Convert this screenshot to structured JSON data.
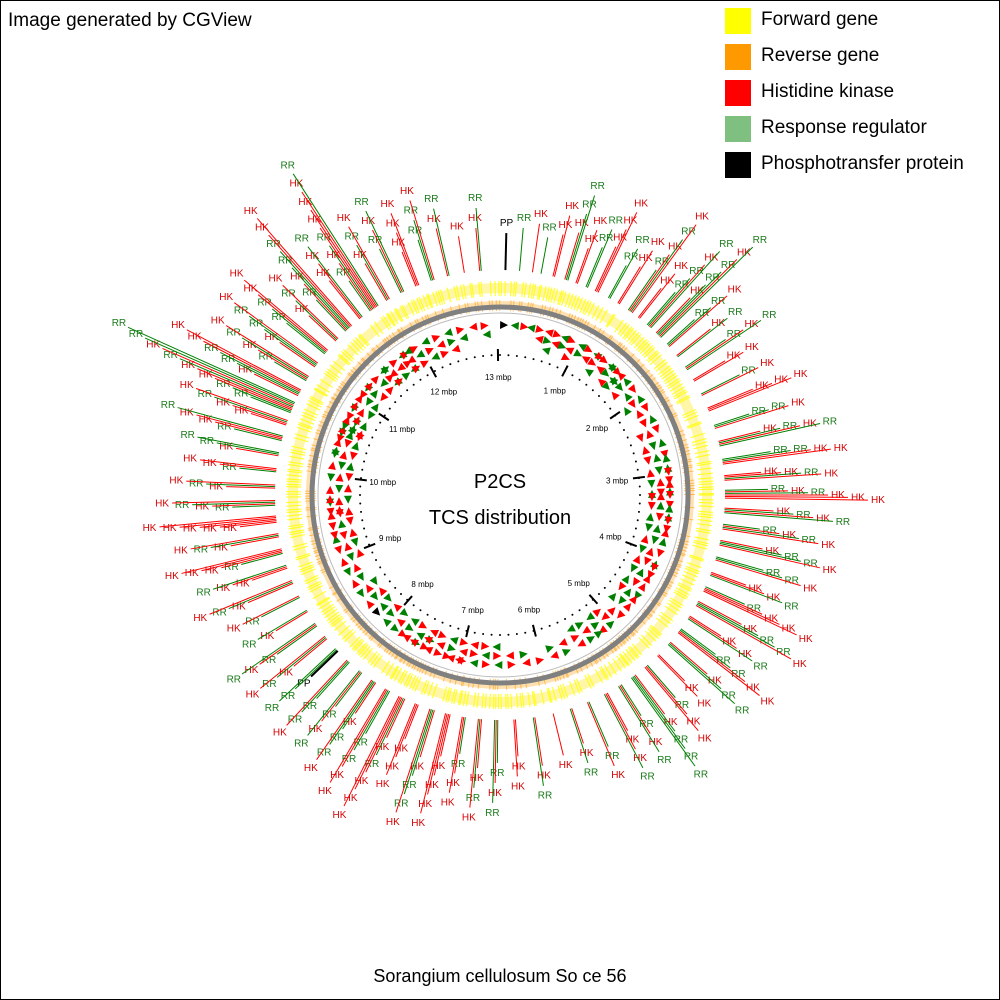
{
  "credit": "Image generated by CGView",
  "center": {
    "title": "P2CS",
    "subtitle": "TCS distribution"
  },
  "footer": "Sorangium cellulosum So ce 56",
  "legend": [
    {
      "label": "Forward gene",
      "color": "#ffff00"
    },
    {
      "label": "Reverse gene",
      "color": "#ff9900"
    },
    {
      "label": "Histidine kinase",
      "color": "#ff0000"
    },
    {
      "label": "Response regulator",
      "color": "#7fbf7f"
    },
    {
      "label": "Phosphotransfer protein",
      "color": "#000000"
    }
  ],
  "genome": {
    "length_mbp": 13.03,
    "ticks": [
      "1 mbp",
      "2 mbp",
      "3 mbp",
      "4 mbp",
      "5 mbp",
      "6 mbp",
      "7 mbp",
      "8 mbp",
      "9 mbp",
      "10 mbp",
      "11 mbp",
      "12 mbp",
      "13 mbp"
    ]
  },
  "feature_labels": {
    "HK": "HK",
    "RR": "RR",
    "PP": "PP"
  },
  "colors": {
    "hk": "#ff0000",
    "rr": "#008000",
    "pp": "#000000",
    "forward": "#ffff00",
    "reverse": "#ff9900",
    "backbone": "#808080",
    "hk_text": "#d40000",
    "rr_text": "#1a7a1a"
  },
  "features": [
    {
      "pos": 0.05,
      "labels": [
        "PP"
      ]
    },
    {
      "pos": 0.18,
      "labels": [
        "RR"
      ]
    },
    {
      "pos": 0.3,
      "labels": [
        "HK"
      ]
    },
    {
      "pos": 0.38,
      "labels": [
        "RR"
      ]
    },
    {
      "pos": 0.5,
      "labels": [
        "HK",
        "HK"
      ]
    },
    {
      "pos": 0.62,
      "labels": [
        "HK",
        "RR",
        "RR"
      ]
    },
    {
      "pos": 0.72,
      "labels": [
        "HK",
        "HK"
      ]
    },
    {
      "pos": 0.82,
      "labels": [
        "RR",
        "RR"
      ]
    },
    {
      "pos": 0.92,
      "labels": [
        "HK",
        "HK",
        "HK"
      ]
    },
    {
      "pos": 1.05,
      "labels": [
        "RR",
        "RR"
      ]
    },
    {
      "pos": 1.15,
      "labels": [
        "HK",
        "HK"
      ]
    },
    {
      "pos": 1.28,
      "labels": [
        "RR",
        "HK",
        "RR",
        "HK"
      ]
    },
    {
      "pos": 1.38,
      "labels": [
        "HK",
        "HK"
      ]
    },
    {
      "pos": 1.5,
      "labels": [
        "RR",
        "RR",
        "HK",
        "RR"
      ]
    },
    {
      "pos": 1.62,
      "labels": [
        "HK",
        "RR",
        "RR",
        "HK",
        "RR"
      ]
    },
    {
      "pos": 1.75,
      "labels": [
        "RR",
        "RR",
        "HK"
      ]
    },
    {
      "pos": 1.88,
      "labels": [
        "HK",
        "RR"
      ]
    },
    {
      "pos": 2.02,
      "labels": [
        "RR",
        "HK",
        "RR"
      ]
    },
    {
      "pos": 2.15,
      "labels": [
        "HK",
        "HK"
      ]
    },
    {
      "pos": 2.3,
      "labels": [
        "RR",
        "HK"
      ]
    },
    {
      "pos": 2.45,
      "labels": [
        "HK",
        "HK",
        "HK"
      ]
    },
    {
      "pos": 2.62,
      "labels": [
        "RR",
        "RR",
        "HK"
      ]
    },
    {
      "pos": 2.78,
      "labels": [
        "HK",
        "RR",
        "HK",
        "RR"
      ]
    },
    {
      "pos": 2.95,
      "labels": [
        "RR",
        "RR",
        "HK",
        "HK"
      ]
    },
    {
      "pos": 3.1,
      "labels": [
        "HK",
        "HK",
        "RR",
        "HK"
      ]
    },
    {
      "pos": 3.25,
      "labels": [
        "RR",
        "HK",
        "RR",
        "HK",
        "HK",
        "HK"
      ]
    },
    {
      "pos": 3.4,
      "labels": [
        "HK",
        "RR",
        "HK",
        "RR"
      ]
    },
    {
      "pos": 3.55,
      "labels": [
        "RR",
        "HK",
        "RR",
        "HK"
      ]
    },
    {
      "pos": 3.7,
      "labels": [
        "HK",
        "RR",
        "RR",
        "HK"
      ]
    },
    {
      "pos": 3.85,
      "labels": [
        "RR",
        "RR",
        "HK"
      ]
    },
    {
      "pos": 4.0,
      "labels": [
        "HK",
        "HK",
        "RR"
      ]
    },
    {
      "pos": 4.15,
      "labels": [
        "RR",
        "HK",
        "HK",
        "HK"
      ]
    },
    {
      "pos": 4.3,
      "labels": [
        "HK",
        "RR",
        "RR",
        "HK"
      ]
    },
    {
      "pos": 4.45,
      "labels": [
        "HK",
        "HK",
        "RR"
      ]
    },
    {
      "pos": 4.6,
      "labels": [
        "RR",
        "RR",
        "HK",
        "HK"
      ]
    },
    {
      "pos": 4.75,
      "labels": [
        "HK",
        "RR",
        "RR"
      ]
    },
    {
      "pos": 4.9,
      "labels": [
        "HK",
        "HK"
      ]
    },
    {
      "pos": 5.05,
      "labels": [
        "RR",
        "HK",
        "HK"
      ]
    },
    {
      "pos": 5.2,
      "labels": [
        "HK",
        "RR",
        "RR",
        "RR"
      ]
    },
    {
      "pos": 5.35,
      "labels": [
        "RR",
        "HK",
        "RR"
      ]
    },
    {
      "pos": 5.5,
      "labels": [
        "HK",
        "HK",
        "RR"
      ]
    },
    {
      "pos": 5.68,
      "labels": [
        "RR",
        "HK"
      ]
    },
    {
      "pos": 5.85,
      "labels": [
        "HK",
        "RR"
      ]
    },
    {
      "pos": 6.02,
      "labels": [
        "HK"
      ]
    },
    {
      "pos": 6.2,
      "labels": [
        "HK",
        "RR"
      ]
    },
    {
      "pos": 6.38,
      "labels": [
        "HK",
        "HK"
      ]
    },
    {
      "pos": 6.55,
      "labels": [
        "RR",
        "HK",
        "RR"
      ]
    },
    {
      "pos": 6.7,
      "labels": [
        "HK",
        "RR",
        "HK"
      ]
    },
    {
      "pos": 6.85,
      "labels": [
        "RR",
        "HK",
        "HK"
      ]
    },
    {
      "pos": 7.0,
      "labels": [
        "HK",
        "HK",
        "HK",
        "HK"
      ]
    },
    {
      "pos": 7.15,
      "labels": [
        "HK",
        "RR",
        "RR",
        "HK"
      ]
    },
    {
      "pos": 7.3,
      "labels": [
        "HK",
        "HK",
        "HK"
      ]
    },
    {
      "pos": 7.45,
      "labels": [
        "HK",
        "RR",
        "HK",
        "HK",
        "HK"
      ]
    },
    {
      "pos": 7.6,
      "labels": [
        "RR",
        "RR",
        "HK",
        "HK"
      ]
    },
    {
      "pos": 7.75,
      "labels": [
        "HK",
        "RR",
        "RR",
        "HK"
      ]
    },
    {
      "pos": 7.9,
      "labels": [
        "RR",
        "HK",
        "RR"
      ]
    },
    {
      "pos": 8.05,
      "labels": [
        "RR",
        "RR",
        "HK"
      ]
    },
    {
      "pos": 8.2,
      "labels": [
        "PP",
        "RR",
        "RR"
      ]
    },
    {
      "pos": 8.35,
      "labels": [
        "HK",
        "RR",
        "HK"
      ]
    },
    {
      "pos": 8.5,
      "labels": [
        "RR",
        "HK",
        "RR"
      ]
    },
    {
      "pos": 8.65,
      "labels": [
        "HK",
        "RR"
      ]
    },
    {
      "pos": 8.8,
      "labels": [
        "RR",
        "HK"
      ]
    },
    {
      "pos": 8.95,
      "labels": [
        "HK",
        "RR",
        "HK"
      ]
    },
    {
      "pos": 9.1,
      "labels": [
        "HK",
        "HK",
        "RR"
      ]
    },
    {
      "pos": 9.25,
      "labels": [
        "RR",
        "HK",
        "HK",
        "HK"
      ]
    },
    {
      "pos": 9.4,
      "labels": [
        "HK",
        "RR",
        "HK"
      ]
    },
    {
      "pos": 9.55,
      "labels": [
        "HK",
        "HK",
        "HK",
        "HK",
        "HK"
      ]
    },
    {
      "pos": 9.7,
      "labels": [
        "RR",
        "HK",
        "RR",
        "HK"
      ]
    },
    {
      "pos": 9.85,
      "labels": [
        "HK",
        "RR",
        "HK"
      ]
    },
    {
      "pos": 10.0,
      "labels": [
        "RR",
        "HK",
        "HK"
      ]
    },
    {
      "pos": 10.15,
      "labels": [
        "HK",
        "RR",
        "RR"
      ]
    },
    {
      "pos": 10.3,
      "labels": [
        "RR",
        "HK",
        "HK",
        "RR"
      ]
    },
    {
      "pos": 10.45,
      "labels": [
        "HK",
        "HK",
        "RR",
        "HK"
      ]
    },
    {
      "pos": 10.6,
      "labels": [
        "RR",
        "RR",
        "HK",
        "HK",
        "RR",
        "HK",
        "RR",
        "RR"
      ]
    },
    {
      "pos": 10.75,
      "labels": [
        "HK",
        "RR",
        "RR",
        "HK",
        "HK"
      ]
    },
    {
      "pos": 10.9,
      "labels": [
        "RR",
        "HK",
        "RR",
        "HK"
      ]
    },
    {
      "pos": 11.05,
      "labels": [
        "HK",
        "RR",
        "RR",
        "HK"
      ]
    },
    {
      "pos": 11.2,
      "labels": [
        "RR",
        "RR",
        "HK",
        "HK"
      ]
    },
    {
      "pos": 11.35,
      "labels": [
        "HK",
        "RR",
        "HK"
      ]
    },
    {
      "pos": 11.5,
      "labels": [
        "RR",
        "HK",
        "RR",
        "RR",
        "HK",
        "HK"
      ]
    },
    {
      "pos": 11.65,
      "labels": [
        "HK",
        "HK",
        "RR"
      ]
    },
    {
      "pos": 11.8,
      "labels": [
        "RR",
        "HK",
        "RR",
        "HK",
        "HK",
        "HK",
        "RR"
      ]
    },
    {
      "pos": 11.95,
      "labels": [
        "HK",
        "RR",
        "HK"
      ]
    },
    {
      "pos": 12.1,
      "labels": [
        "RR",
        "HK",
        "RR"
      ]
    },
    {
      "pos": 12.25,
      "labels": [
        "HK",
        "HK",
        "HK"
      ]
    },
    {
      "pos": 12.4,
      "labels": [
        "RR",
        "RR",
        "HK"
      ]
    },
    {
      "pos": 12.55,
      "labels": [
        "HK",
        "RR"
      ]
    },
    {
      "pos": 12.7,
      "labels": [
        "HK"
      ]
    },
    {
      "pos": 12.85,
      "labels": [
        "HK",
        "RR"
      ]
    }
  ]
}
